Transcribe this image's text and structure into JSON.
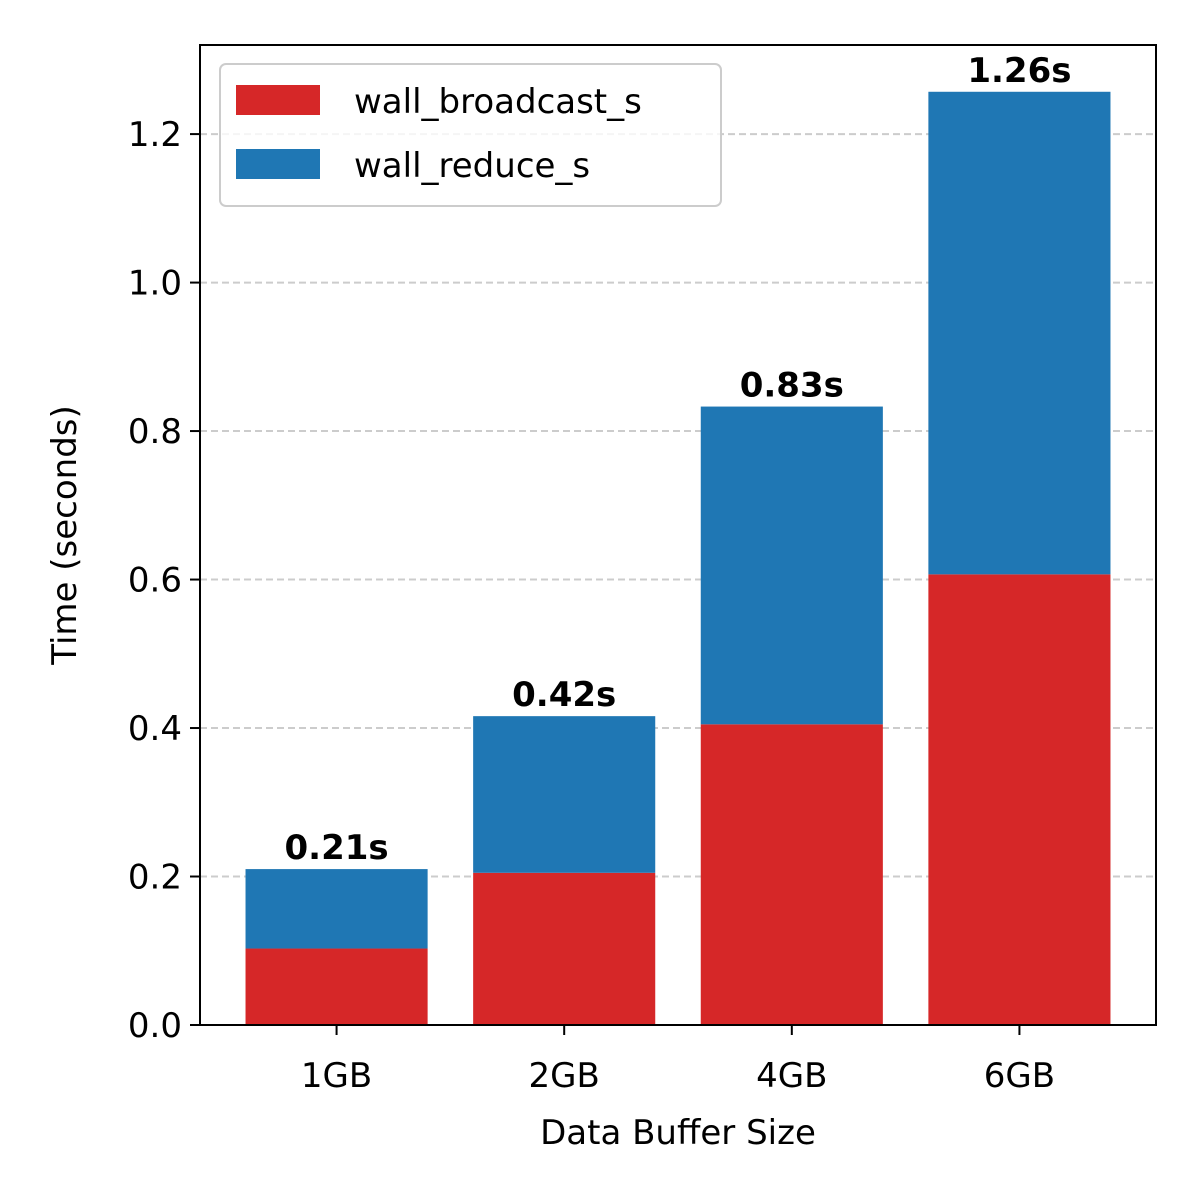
{
  "chart_data": {
    "type": "bar",
    "stacked": true,
    "title": "",
    "xlabel": "Data Buffer Size",
    "ylabel": "Time (seconds)",
    "categories": [
      "1GB",
      "2GB",
      "4GB",
      "6GB"
    ],
    "series": [
      {
        "name": "wall_broadcast_s",
        "color": "#d62728",
        "values": [
          0.103,
          0.205,
          0.405,
          0.607
        ]
      },
      {
        "name": "wall_reduce_s",
        "color": "#1f77b4",
        "values": [
          0.107,
          0.211,
          0.428,
          0.65
        ]
      }
    ],
    "totals_labels": [
      "0.21s",
      "0.42s",
      "0.83s",
      "1.26s"
    ],
    "ylim": [
      0,
      1.32
    ],
    "yticks": [
      0.0,
      0.2,
      0.4,
      0.6,
      0.8,
      1.0,
      1.2
    ],
    "ytick_labels": [
      "0.0",
      "0.2",
      "0.4",
      "0.6",
      "0.8",
      "1.0",
      "1.2"
    ],
    "grid": "y-dashed",
    "legend_position": "top-left"
  }
}
